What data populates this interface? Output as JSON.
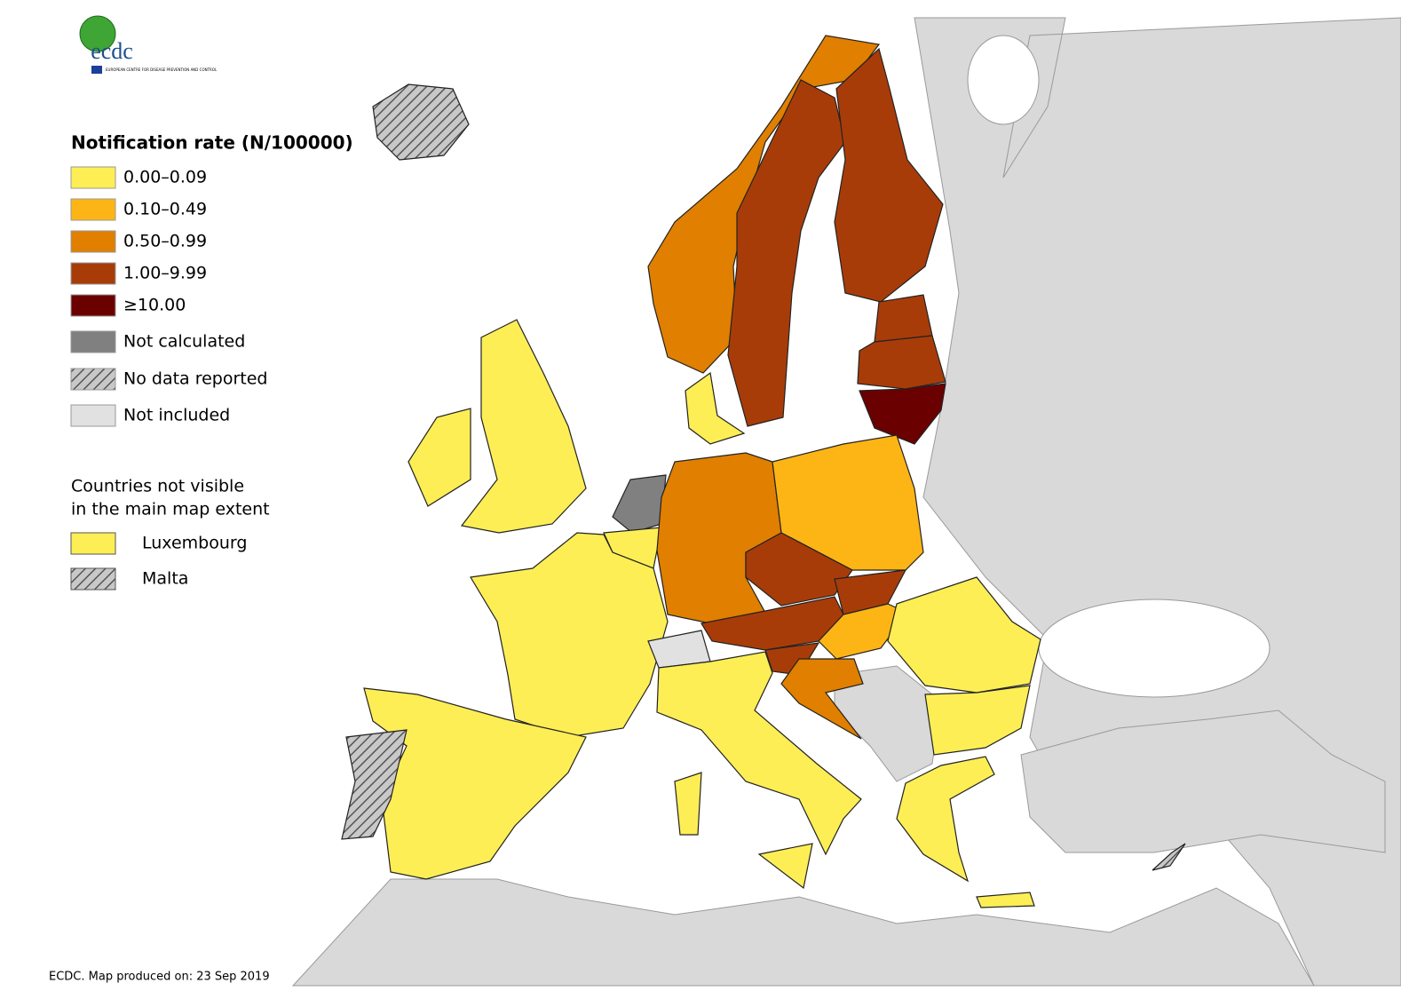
{
  "logo": {
    "text": "ecdc",
    "subtitle": "EUROPEAN CENTRE FOR DISEASE PREVENTION AND CONTROL"
  },
  "legend": {
    "title": "Notification rate (N/100000)",
    "items": [
      {
        "label": "0.00–0.09",
        "color": "#fdee55"
      },
      {
        "label": "0.10–0.49",
        "color": "#fdb515"
      },
      {
        "label": "0.50–0.99",
        "color": "#e07f00"
      },
      {
        "label": "1.00–9.99",
        "color": "#a83c09"
      },
      {
        "label": "≥10.00",
        "color": "#6b0000"
      },
      {
        "label": "Not calculated",
        "color": "#808080"
      },
      {
        "label": "No data reported",
        "pattern": "hatch"
      },
      {
        "label": "Not included",
        "color": "#e1e1e1"
      }
    ]
  },
  "inset": {
    "title_lines": [
      "Countries not visible",
      "in the main map extent"
    ],
    "items": [
      {
        "label": "Luxembourg",
        "color": "#fdee55"
      },
      {
        "label": "Malta",
        "pattern": "hatch"
      }
    ]
  },
  "footer": "ECDC. Map produced on: 23 Sep 2019"
}
